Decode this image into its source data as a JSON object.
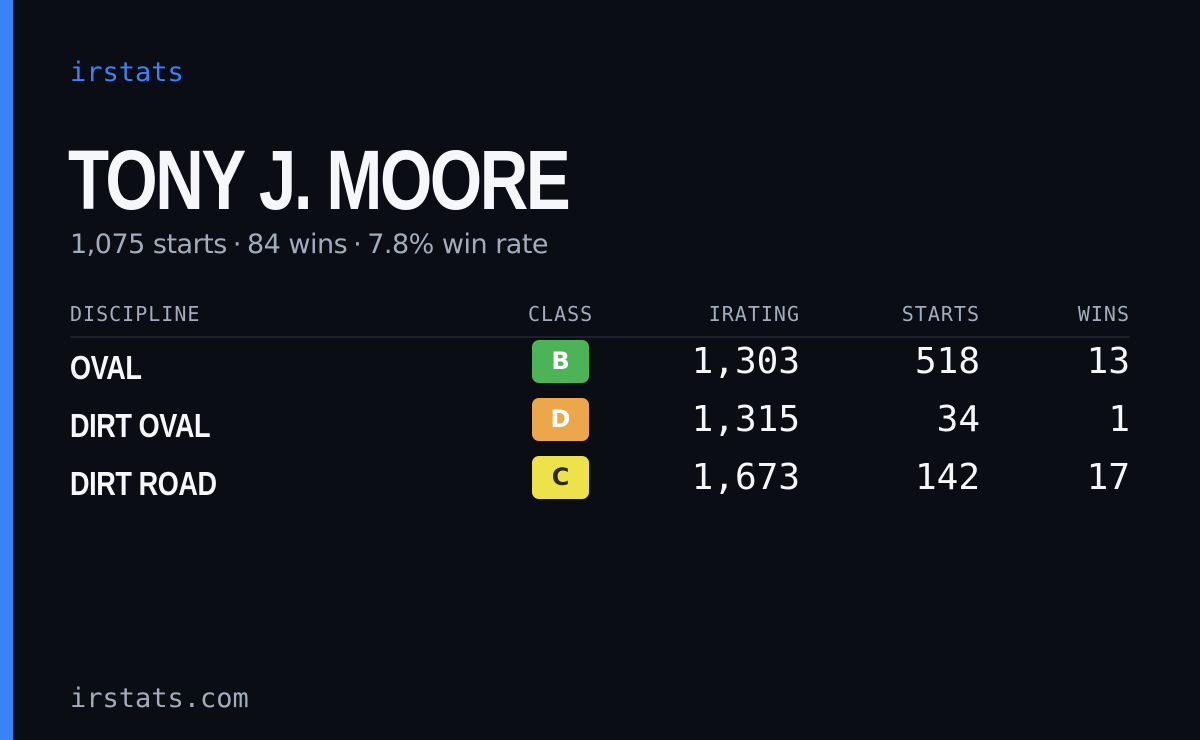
{
  "brand": "irstats",
  "driver": {
    "name": "TONY J. MOORE",
    "summary": {
      "starts": "1,075 starts",
      "separator": "·",
      "wins": "84 wins",
      "win_rate": "7.8% win rate"
    }
  },
  "table": {
    "headers": {
      "discipline": "DISCIPLINE",
      "class": "CLASS",
      "irating": "IRATING",
      "starts": "STARTS",
      "wins": "WINS"
    },
    "rows": [
      {
        "discipline": "OVAL",
        "class": "B",
        "class_color": "#4cb357",
        "class_text_color": "#ffffff",
        "irating": "1,303",
        "starts": "518",
        "wins": "13"
      },
      {
        "discipline": "DIRT OVAL",
        "class": "D",
        "class_color": "#eba74a",
        "class_text_color": "#ffffff",
        "irating": "1,315",
        "starts": "34",
        "wins": "1"
      },
      {
        "discipline": "DIRT ROAD",
        "class": "C",
        "class_color": "#ede24a",
        "class_text_color": "#2a2a1e",
        "irating": "1,673",
        "starts": "142",
        "wins": "17"
      }
    ]
  },
  "footer": "irstats.com",
  "colors": {
    "background": "#0a0d14",
    "accent": "#3b82f6",
    "muted_text": "#a3acbc",
    "primary_text": "#f5f7fa"
  }
}
